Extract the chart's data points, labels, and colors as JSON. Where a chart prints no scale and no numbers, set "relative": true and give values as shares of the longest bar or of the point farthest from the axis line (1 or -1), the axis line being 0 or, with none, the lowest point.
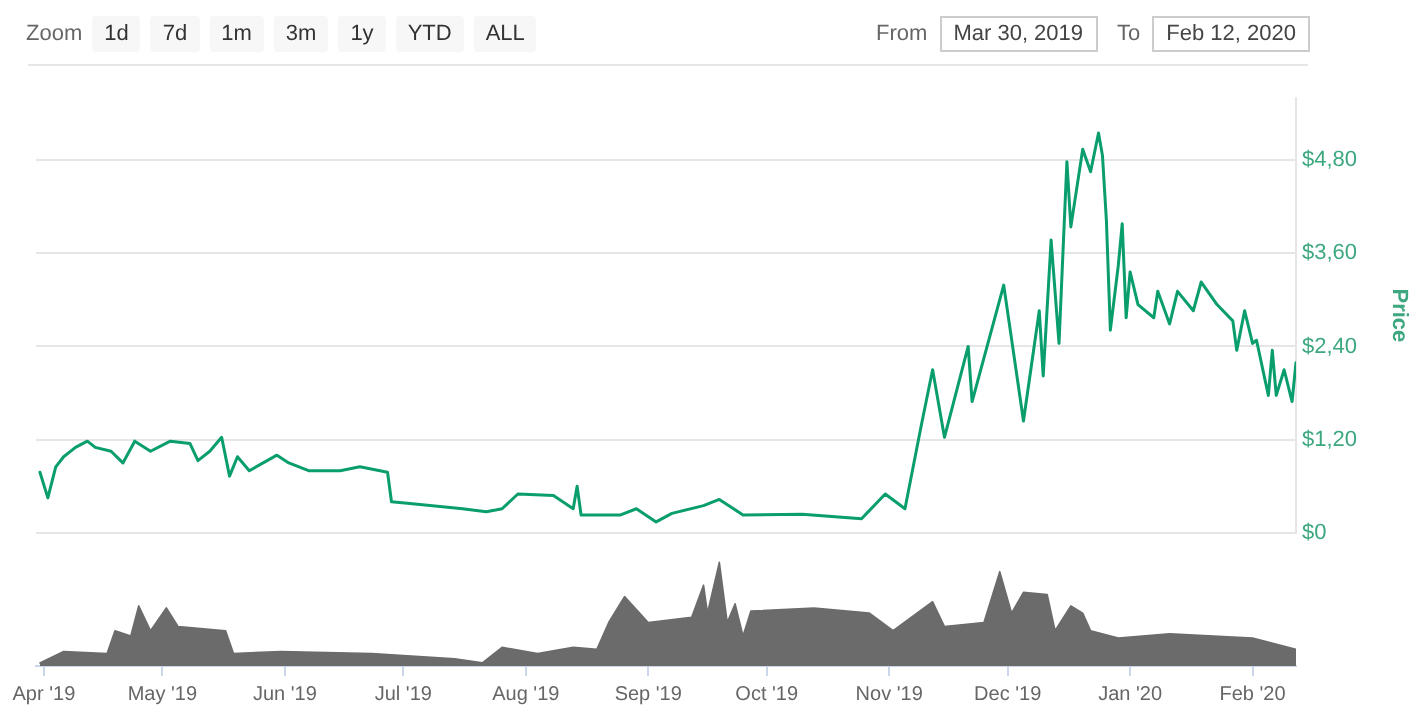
{
  "chart_data": [
    {
      "type": "line",
      "annotations": [
        "Zoom",
        "1d",
        "7d",
        "1m",
        "3m",
        "1y",
        "YTD",
        "ALL",
        "From",
        "Mar 30, 2019",
        "To",
        "Feb 12, 2020"
      ],
      "ylabel": "Price",
      "color": "#0a9e6e",
      "grid": "y",
      "tick_labels": "y",
      "xlim": [
        "2019-03-30",
        "2020-02-12"
      ],
      "ylim": [
        0,
        5.6
      ],
      "yticks": [
        {
          "value": 0,
          "label": "$0"
        },
        {
          "value": 1.2,
          "label": "$1,20"
        },
        {
          "value": 2.4,
          "label": "$2,40"
        },
        {
          "value": 3.6,
          "label": "$3,60"
        },
        {
          "value": 4.8,
          "label": "$4,80"
        }
      ],
      "x": [
        "2019-03-31",
        "2019-04-02",
        "2019-04-04",
        "2019-04-06",
        "2019-04-09",
        "2019-04-12",
        "2019-04-14",
        "2019-04-18",
        "2019-04-21",
        "2019-04-24",
        "2019-04-28",
        "2019-05-03",
        "2019-05-08",
        "2019-05-10",
        "2019-05-13",
        "2019-05-16",
        "2019-05-18",
        "2019-05-20",
        "2019-05-23",
        "2019-05-30",
        "2019-06-02",
        "2019-06-07",
        "2019-06-15",
        "2019-06-20",
        "2019-06-27",
        "2019-06-28",
        "2019-07-02",
        "2019-07-16",
        "2019-07-22",
        "2019-07-26",
        "2019-07-30",
        "2019-08-08",
        "2019-08-13",
        "2019-08-14",
        "2019-08-15",
        "2019-08-25",
        "2019-08-29",
        "2019-09-03",
        "2019-09-07",
        "2019-09-15",
        "2019-09-19",
        "2019-09-25",
        "2019-10-10",
        "2019-10-25",
        "2019-10-31",
        "2019-11-05",
        "2019-11-09",
        "2019-11-12",
        "2019-11-15",
        "2019-11-21",
        "2019-11-22",
        "2019-11-30",
        "2019-12-05",
        "2019-12-09",
        "2019-12-10",
        "2019-12-12",
        "2019-12-14",
        "2019-12-16",
        "2019-12-17",
        "2019-12-20",
        "2019-12-22",
        "2019-12-24",
        "2019-12-25",
        "2019-12-26",
        "2019-12-27",
        "2019-12-29",
        "2019-12-30",
        "2019-12-31",
        "2020-01-01",
        "2020-01-03",
        "2020-01-07",
        "2020-01-08",
        "2020-01-11",
        "2020-01-13",
        "2020-01-17",
        "2020-01-19",
        "2020-01-23",
        "2020-01-27",
        "2020-01-28",
        "2020-01-30",
        "2020-02-01",
        "2020-02-02",
        "2020-02-05",
        "2020-02-06",
        "2020-02-07",
        "2020-02-09",
        "2020-02-11",
        "2020-02-12"
      ],
      "values": [
        0.78,
        0.45,
        0.85,
        0.98,
        1.1,
        1.18,
        1.1,
        1.05,
        0.9,
        1.18,
        1.05,
        1.18,
        1.15,
        0.93,
        1.05,
        1.23,
        0.73,
        0.98,
        0.8,
        1.0,
        0.9,
        0.8,
        0.8,
        0.85,
        0.78,
        0.4,
        0.38,
        0.31,
        0.27,
        0.31,
        0.5,
        0.48,
        0.31,
        0.6,
        0.23,
        0.23,
        0.31,
        0.14,
        0.25,
        0.35,
        0.43,
        0.23,
        0.24,
        0.18,
        0.5,
        0.31,
        1.35,
        2.1,
        1.23,
        2.4,
        1.69,
        3.19,
        1.44,
        2.86,
        2.02,
        3.77,
        2.44,
        4.78,
        3.94,
        4.94,
        4.65,
        5.15,
        4.86,
        4.02,
        2.61,
        3.44,
        3.98,
        2.77,
        3.36,
        2.94,
        2.77,
        3.11,
        2.69,
        3.11,
        2.86,
        3.23,
        2.94,
        2.73,
        2.35,
        2.86,
        2.44,
        2.48,
        1.77,
        2.35,
        1.77,
        2.1,
        1.69,
        2.19
      ]
    },
    {
      "type": "area",
      "relative": true,
      "color": "#6b6b6b",
      "xlim": [
        "2019-03-30",
        "2020-02-12"
      ],
      "xticks": [
        {
          "value": "2019-04-01",
          "label": "Apr '19"
        },
        {
          "value": "2019-05-01",
          "label": "May '19"
        },
        {
          "value": "2019-06-01",
          "label": "Jun '19"
        },
        {
          "value": "2019-07-01",
          "label": "Jul '19"
        },
        {
          "value": "2019-08-01",
          "label": "Aug '19"
        },
        {
          "value": "2019-09-01",
          "label": "Sep '19"
        },
        {
          "value": "2019-10-01",
          "label": "Oct '19"
        },
        {
          "value": "2019-11-01",
          "label": "Nov '19"
        },
        {
          "value": "2019-12-01",
          "label": "Dec '19"
        },
        {
          "value": "2020-01-01",
          "label": "Jan '20"
        },
        {
          "value": "2020-02-01",
          "label": "Feb '20"
        }
      ],
      "x": [
        "2019-03-31",
        "2019-04-06",
        "2019-04-17",
        "2019-04-19",
        "2019-04-23",
        "2019-04-25",
        "2019-04-28",
        "2019-05-02",
        "2019-05-05",
        "2019-05-17",
        "2019-05-19",
        "2019-05-31",
        "2019-06-23",
        "2019-07-14",
        "2019-07-21",
        "2019-07-26",
        "2019-08-04",
        "2019-08-13",
        "2019-08-19",
        "2019-08-22",
        "2019-08-26",
        "2019-09-01",
        "2019-09-12",
        "2019-09-15",
        "2019-09-16",
        "2019-09-19",
        "2019-09-21",
        "2019-09-23",
        "2019-09-25",
        "2019-09-27",
        "2019-10-13",
        "2019-10-27",
        "2019-11-02",
        "2019-11-12",
        "2019-11-15",
        "2019-11-25",
        "2019-11-29",
        "2019-12-02",
        "2019-12-05",
        "2019-12-11",
        "2019-12-13",
        "2019-12-17",
        "2019-12-20",
        "2019-12-22",
        "2019-12-29",
        "2020-01-11",
        "2020-02-01",
        "2020-02-12"
      ],
      "values": [
        0.03,
        0.14,
        0.12,
        0.34,
        0.29,
        0.58,
        0.34,
        0.56,
        0.38,
        0.34,
        0.12,
        0.14,
        0.12,
        0.07,
        0.03,
        0.18,
        0.12,
        0.18,
        0.16,
        0.42,
        0.67,
        0.42,
        0.47,
        0.78,
        0.51,
        1,
        0.42,
        0.6,
        0.29,
        0.53,
        0.56,
        0.51,
        0.34,
        0.62,
        0.38,
        0.42,
        0.91,
        0.51,
        0.71,
        0.69,
        0.34,
        0.58,
        0.51,
        0.34,
        0.27,
        0.31,
        0.27,
        0.16
      ]
    }
  ]
}
